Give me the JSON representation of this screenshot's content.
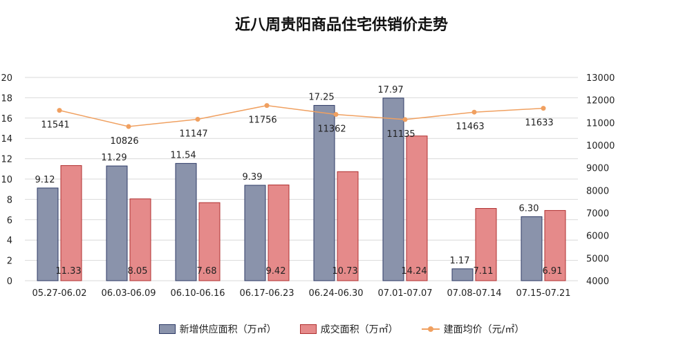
{
  "chart_data": {
    "type": "bar",
    "title": "近八周贵阳商品住宅供销价走势",
    "categories": [
      "05.27-06.02",
      "06.03-06.09",
      "06.10-06.16",
      "06.17-06.23",
      "06.24-06.30",
      "07.01-07.07",
      "07.08-07.14",
      "07.15-07.21"
    ],
    "series": [
      {
        "name": "新增供应面积（万㎡）",
        "type": "bar",
        "axis": "left",
        "color": "#8a93ab",
        "values": [
          9.12,
          11.29,
          11.54,
          9.39,
          17.25,
          17.97,
          1.17,
          6.3
        ],
        "labels": [
          "9.12",
          "11.29",
          "11.54",
          "9.39",
          "17.25",
          "17.97",
          "1.17",
          "6.30"
        ]
      },
      {
        "name": "成交面积（万㎡）",
        "type": "bar",
        "axis": "left",
        "color": "#e58a8a",
        "values": [
          11.33,
          8.05,
          7.68,
          9.42,
          10.73,
          14.24,
          7.11,
          6.91
        ],
        "labels": [
          "11.33",
          "8.05",
          "7.68",
          "9.42",
          "10.73",
          "14.24",
          "7.11",
          "6.91"
        ]
      },
      {
        "name": "建面均价（元/㎡）",
        "type": "line",
        "axis": "right",
        "color": "#f0a060",
        "values": [
          11541,
          10826,
          11147,
          11756,
          11362,
          11135,
          11463,
          11633
        ],
        "labels": [
          "11541",
          "10826",
          "11147",
          "11756",
          "11362",
          "11135",
          "11463",
          "11633"
        ]
      }
    ],
    "y_left": {
      "min": 0,
      "max": 20,
      "step": 2
    },
    "y_right": {
      "min": 4000,
      "max": 13000,
      "step": 1000
    },
    "legend_position": "bottom",
    "grid": true
  }
}
